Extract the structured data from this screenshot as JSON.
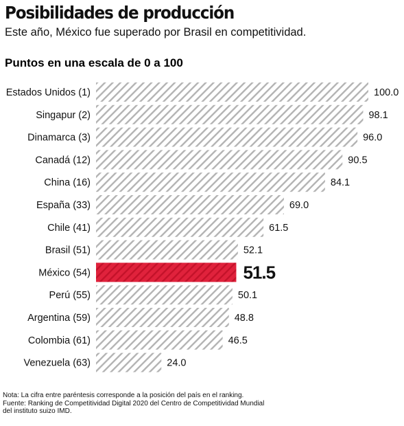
{
  "header": {
    "title": "Posibilidades de producción",
    "subtitle": "Este año, México fue superado por Brasil en competitividad.",
    "scale_label": "Puntos en una escala de 0 a 100"
  },
  "colors": {
    "hatch_gray": "#b3b3b3",
    "highlight_red": "#e0223c",
    "text": "#111111"
  },
  "chart_data": {
    "type": "bar",
    "orientation": "horizontal",
    "categories": [
      "Estados Unidos (1)",
      "Singapur (2)",
      "Dinamarca (3)",
      "Canadá (12)",
      "China (16)",
      "España (33)",
      "Chile (41)",
      "Brasil (51)",
      "México (54)",
      "Perú (55)",
      "Argentina (59)",
      "Colombia (61)",
      "Venezuela (63)"
    ],
    "values": [
      100.0,
      98.1,
      96.0,
      90.5,
      84.1,
      69.0,
      61.5,
      52.1,
      51.5,
      50.1,
      48.8,
      46.5,
      24.0
    ],
    "value_labels": [
      "100.0",
      "98.1",
      "96.0",
      "90.5",
      "84.1",
      "69.0",
      "61.5",
      "52.1",
      "51.5",
      "50.1",
      "48.8",
      "46.5",
      "24.0"
    ],
    "highlight": "México (54)",
    "xlim": [
      0,
      100
    ],
    "grid": false,
    "legend": "none"
  },
  "footer": {
    "note": "Nota: La cifra entre paréntesis corresponde a la posición del país en el ranking.",
    "source_line1": "Fuente: Ranking de Competitividad Digital 2020 del Centro de Competitividad Mundial",
    "source_line2": "del instituto suizo IMD."
  }
}
